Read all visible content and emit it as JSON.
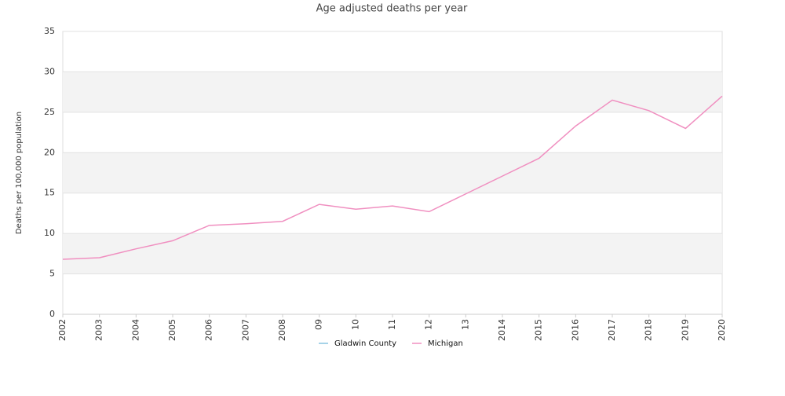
{
  "chart_data": {
    "type": "line",
    "title": "Age adjusted deaths per year",
    "y_label": "Deaths per 100,000 population",
    "categories": [
      "2002",
      "2003",
      "2004",
      "2005",
      "2006",
      "2007",
      "2008",
      "09",
      "10",
      "11",
      "12",
      "13",
      "2014",
      "2015",
      "2016",
      "2017",
      "2018",
      "2019",
      "2020"
    ],
    "series": [
      {
        "name": "Gladwin County",
        "color": "#89c4e1",
        "values": [
          null,
          null,
          null,
          null,
          null,
          null,
          null,
          null,
          null,
          null,
          null,
          null,
          null,
          null,
          null,
          null,
          null,
          null,
          null
        ]
      },
      {
        "name": "Michigan",
        "color": "#f08fc0",
        "values": [
          6.8,
          7.0,
          8.1,
          9.1,
          11.0,
          11.2,
          11.5,
          13.6,
          13.0,
          13.4,
          12.7,
          14.9,
          17.1,
          19.3,
          23.3,
          26.5,
          25.2,
          23.0,
          27.0
        ]
      }
    ],
    "ylim": [
      0,
      35
    ],
    "yticks": [
      0,
      5,
      10,
      15,
      20,
      25,
      30,
      35
    ],
    "grid": true,
    "legend": "bottom"
  }
}
